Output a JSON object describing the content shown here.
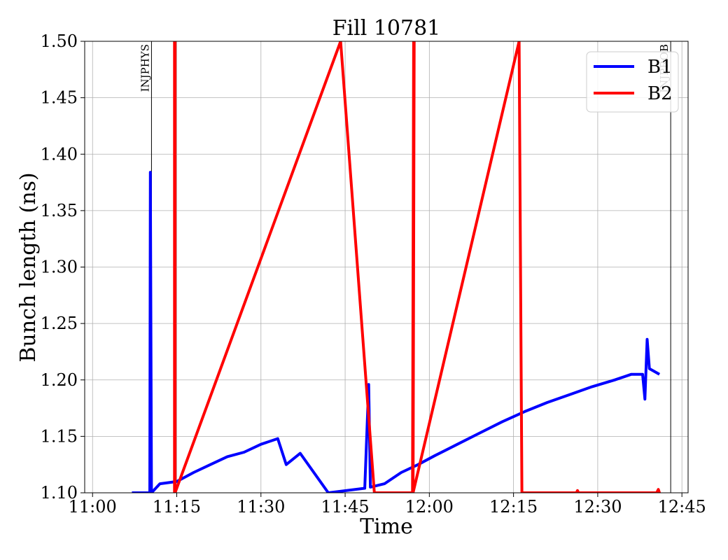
{
  "chart_data": {
    "type": "line",
    "title": "Fill 10781",
    "xlabel": "Time",
    "ylabel": "Bunch length (ns)",
    "xlim": [
      "11:00",
      "12:45"
    ],
    "ylim": [
      1.1,
      1.5
    ],
    "x_ticks": [
      "11:00",
      "11:15",
      "11:30",
      "11:45",
      "12:00",
      "12:15",
      "12:30",
      "12:45"
    ],
    "y_ticks": [
      "1.10",
      "1.15",
      "1.20",
      "1.25",
      "1.30",
      "1.35",
      "1.40",
      "1.45",
      "1.50"
    ],
    "grid": true,
    "legend_position": "top-right",
    "colors": {
      "B1": "#0000ff",
      "B2": "#ff0000"
    },
    "events": [
      {
        "label": "INJPHYS",
        "time": "11:10.5"
      },
      {
        "label": "INJPROB",
        "time": "12:43"
      }
    ],
    "series": [
      {
        "name": "B1",
        "color": "#0000ff",
        "points": [
          [
            "11:07.0",
            1.1
          ],
          [
            "11:10.2",
            1.1
          ],
          [
            "11:10.3",
            1.384
          ],
          [
            "11:10.5",
            1.1
          ],
          [
            "11:12.0",
            1.108
          ],
          [
            "11:15.0",
            1.11
          ],
          [
            "11:18.0",
            1.118
          ],
          [
            "11:21.0",
            1.125
          ],
          [
            "11:24.0",
            1.132
          ],
          [
            "11:27.0",
            1.136
          ],
          [
            "11:30.0",
            1.143
          ],
          [
            "11:33.0",
            1.148
          ],
          [
            "11:34.5",
            1.125
          ],
          [
            "11:37.0",
            1.135
          ],
          [
            "11:42.0",
            1.1
          ],
          [
            "11:48.5",
            1.104
          ],
          [
            "11:49.2",
            1.196
          ],
          [
            "11:49.5",
            1.105
          ],
          [
            "11:52.0",
            1.108
          ],
          [
            "11:55.0",
            1.118
          ],
          [
            "11:58.0",
            1.125
          ],
          [
            "12:01.0",
            1.133
          ],
          [
            "12:05.0",
            1.143
          ],
          [
            "12:09.0",
            1.153
          ],
          [
            "12:13.0",
            1.163
          ],
          [
            "12:17.0",
            1.172
          ],
          [
            "12:21.0",
            1.18
          ],
          [
            "12:25.0",
            1.187
          ],
          [
            "12:29.0",
            1.194
          ],
          [
            "12:33.0",
            1.2
          ],
          [
            "12:36.0",
            1.205
          ],
          [
            "12:38.0",
            1.205
          ],
          [
            "12:38.4",
            1.183
          ],
          [
            "12:38.8",
            1.236
          ],
          [
            "12:39.2",
            1.21
          ],
          [
            "12:41.0",
            1.205
          ]
        ]
      },
      {
        "name": "B2",
        "color": "#ff0000",
        "points": [
          [
            "11:14.6",
            1.1
          ],
          [
            "11:14.6",
            1.5
          ],
          [
            "11:14.7",
            1.5
          ],
          [
            "11:14.7",
            1.1
          ],
          [
            "11:44.2",
            1.5
          ],
          [
            "11:50.2",
            1.1
          ],
          [
            "11:57.0",
            1.1
          ],
          [
            "11:57.2",
            1.5
          ],
          [
            "11:57.3",
            1.5
          ],
          [
            "11:57.1",
            1.1
          ],
          [
            "12:16.0",
            1.5
          ],
          [
            "12:16.5",
            1.1
          ],
          [
            "12:26.2",
            1.1
          ],
          [
            "12:26.4",
            1.102
          ],
          [
            "12:26.6",
            1.1
          ],
          [
            "12:40.5",
            1.1
          ],
          [
            "12:40.8",
            1.103
          ],
          [
            "12:41.0",
            1.1
          ]
        ]
      }
    ]
  }
}
